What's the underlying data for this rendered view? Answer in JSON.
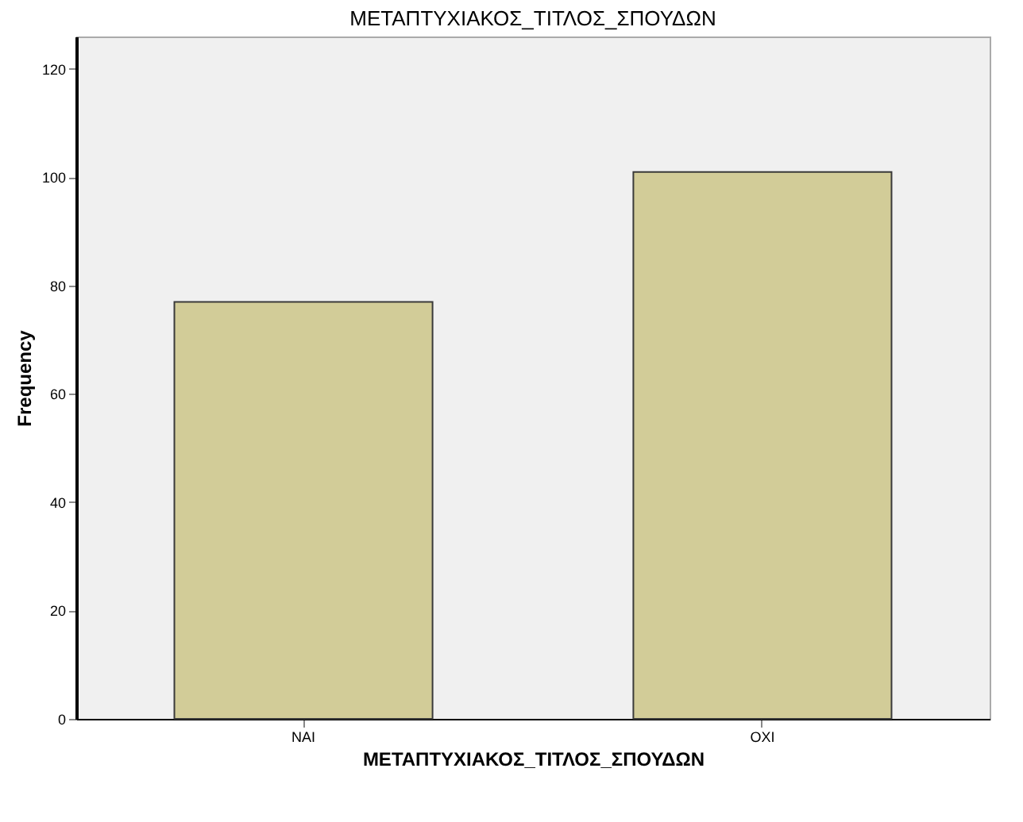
{
  "chart_data": {
    "type": "bar",
    "title": "ΜΕΤΑΠΤΥΧΙΑΚΟΣ_ΤΙΤΛΟΣ_ΣΠΟΥΔΩΝ",
    "xlabel": "ΜΕΤΑΠΤΥΧΙΑΚΟΣ_ΤΙΤΛΟΣ_ΣΠΟΥΔΩΝ",
    "ylabel": "Frequency",
    "categories": [
      "ΝΑΙ",
      "ΟΧΙ"
    ],
    "values": [
      77,
      101
    ],
    "color": "#d2cc98",
    "ylim": [
      0,
      126
    ],
    "yticks": [
      0,
      20,
      40,
      60,
      80,
      100,
      120
    ],
    "grid": false
  }
}
